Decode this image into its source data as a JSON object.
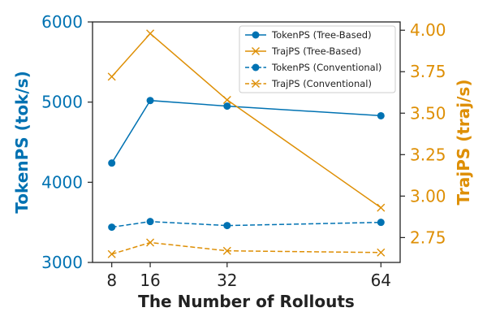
{
  "chart_data": {
    "type": "line",
    "x": [
      8,
      16,
      32,
      64
    ],
    "xlabel": "The Number of Rollouts",
    "xticks": [
      "8",
      "16",
      "32",
      "64"
    ],
    "xlim": [
      4,
      68
    ],
    "left_axis": {
      "label": "TokenPS (tok/s)",
      "ylim": [
        3000,
        6000
      ],
      "ticks": [
        "3000",
        "4000",
        "5000",
        "6000"
      ],
      "tick_values": [
        3000,
        4000,
        5000,
        6000
      ],
      "color": "#0072b2"
    },
    "right_axis": {
      "label": "TrajPS (traj/s)",
      "ylim": [
        2.6,
        4.05
      ],
      "ticks": [
        "2.75",
        "3.00",
        "3.25",
        "3.50",
        "3.75",
        "4.00"
      ],
      "tick_values": [
        2.75,
        3.0,
        3.25,
        3.5,
        3.75,
        4.0
      ],
      "color": "#de8f05"
    },
    "series": [
      {
        "name": "TokenPS (Tree-Based)",
        "axis": "left",
        "values": [
          4240,
          5020,
          4950,
          4830
        ],
        "color": "#0072b2",
        "marker": "circle",
        "linestyle": "solid"
      },
      {
        "name": "TrajPS (Tree-Based)",
        "axis": "right",
        "values": [
          3.72,
          3.98,
          3.58,
          2.93
        ],
        "color": "#de8f05",
        "marker": "x",
        "linestyle": "solid"
      },
      {
        "name": "TokenPS (Conventional)",
        "axis": "left",
        "values": [
          3440,
          3510,
          3460,
          3500
        ],
        "color": "#0072b2",
        "marker": "circle",
        "linestyle": "dashed"
      },
      {
        "name": "TrajPS (Conventional)",
        "axis": "right",
        "values": [
          2.65,
          2.72,
          2.67,
          2.66
        ],
        "color": "#de8f05",
        "marker": "x",
        "linestyle": "dashed"
      }
    ],
    "legend_position": "top-right"
  }
}
